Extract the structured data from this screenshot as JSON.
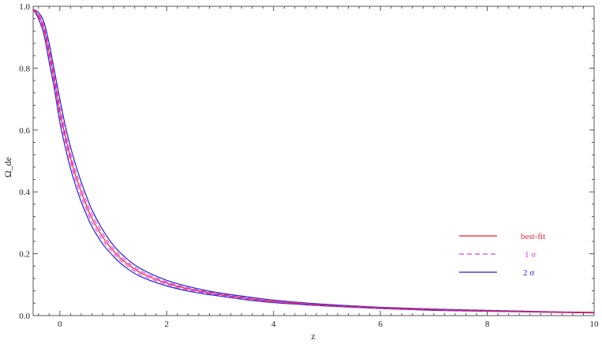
{
  "chart_data": {
    "type": "line",
    "title": "",
    "xlabel": "z",
    "ylabel": "Ω_de",
    "xlim": [
      -0.5,
      10
    ],
    "ylim": [
      0,
      1
    ],
    "xticks": [
      0,
      2,
      4,
      6,
      8,
      10
    ],
    "yticks": [
      0.0,
      0.2,
      0.4,
      0.6,
      0.8,
      1.0
    ],
    "xtick_labels": [
      "0",
      "2",
      "4",
      "6",
      "8",
      "10"
    ],
    "ytick_labels": [
      "0.0",
      "0.2",
      "0.4",
      "0.6",
      "0.8",
      "1.0"
    ],
    "grid": false,
    "legend_position": "right",
    "series": [
      {
        "name": "best-fit",
        "color": "#e8203a",
        "style": "solid",
        "x": [
          -0.5,
          -0.4,
          -0.3,
          -0.2,
          -0.1,
          0.0,
          0.1,
          0.2,
          0.3,
          0.4,
          0.5,
          0.6,
          0.8,
          1.0,
          1.2,
          1.5,
          2.0,
          2.5,
          3.0,
          3.5,
          4.0,
          5.0,
          6.0,
          7.0,
          8.0,
          9.0,
          10.0
        ],
        "y": [
          0.99,
          0.97,
          0.93,
          0.85,
          0.76,
          0.66,
          0.58,
          0.51,
          0.45,
          0.4,
          0.355,
          0.315,
          0.255,
          0.21,
          0.176,
          0.14,
          0.105,
          0.083,
          0.068,
          0.056,
          0.046,
          0.033,
          0.025,
          0.019,
          0.015,
          0.012,
          0.0095
        ]
      },
      {
        "name": "1 σ",
        "color": "#e040e0",
        "style": "dashed",
        "x": [
          -0.5,
          -0.4,
          -0.3,
          -0.2,
          -0.1,
          0.0,
          0.1,
          0.2,
          0.3,
          0.4,
          0.5,
          0.6,
          0.8,
          1.0,
          1.2,
          1.5,
          2.0,
          2.5,
          3.0,
          3.5,
          4.0,
          5.0,
          6.0,
          7.0,
          8.0,
          9.0,
          10.0
        ],
        "y_upper": [
          0.99,
          0.975,
          0.94,
          0.865,
          0.775,
          0.68,
          0.595,
          0.525,
          0.465,
          0.415,
          0.368,
          0.327,
          0.265,
          0.218,
          0.183,
          0.146,
          0.109,
          0.086,
          0.07,
          0.058,
          0.048,
          0.034,
          0.026,
          0.02,
          0.016,
          0.0125,
          0.01
        ],
        "y_lower": [
          0.99,
          0.965,
          0.92,
          0.835,
          0.745,
          0.645,
          0.565,
          0.495,
          0.435,
          0.385,
          0.342,
          0.303,
          0.245,
          0.202,
          0.169,
          0.134,
          0.101,
          0.08,
          0.066,
          0.054,
          0.044,
          0.032,
          0.024,
          0.018,
          0.0145,
          0.0115,
          0.009
        ]
      },
      {
        "name": "2 σ",
        "color": "#2020e8",
        "style": "solid",
        "x": [
          -0.5,
          -0.4,
          -0.3,
          -0.2,
          -0.1,
          0.0,
          0.1,
          0.2,
          0.3,
          0.4,
          0.5,
          0.6,
          0.8,
          1.0,
          1.2,
          1.5,
          2.0,
          2.5,
          3.0,
          3.5,
          4.0,
          5.0,
          6.0,
          7.0,
          8.0,
          9.0,
          10.0
        ],
        "y_upper": [
          0.99,
          0.98,
          0.95,
          0.88,
          0.79,
          0.7,
          0.615,
          0.545,
          0.485,
          0.432,
          0.385,
          0.342,
          0.278,
          0.228,
          0.192,
          0.153,
          0.114,
          0.09,
          0.073,
          0.061,
          0.05,
          0.036,
          0.027,
          0.021,
          0.017,
          0.013,
          0.0105
        ],
        "y_lower": [
          0.99,
          0.96,
          0.91,
          0.82,
          0.73,
          0.625,
          0.545,
          0.475,
          0.418,
          0.368,
          0.326,
          0.288,
          0.232,
          0.192,
          0.16,
          0.127,
          0.096,
          0.076,
          0.063,
          0.051,
          0.042,
          0.031,
          0.023,
          0.017,
          0.014,
          0.011,
          0.0085
        ]
      }
    ]
  }
}
